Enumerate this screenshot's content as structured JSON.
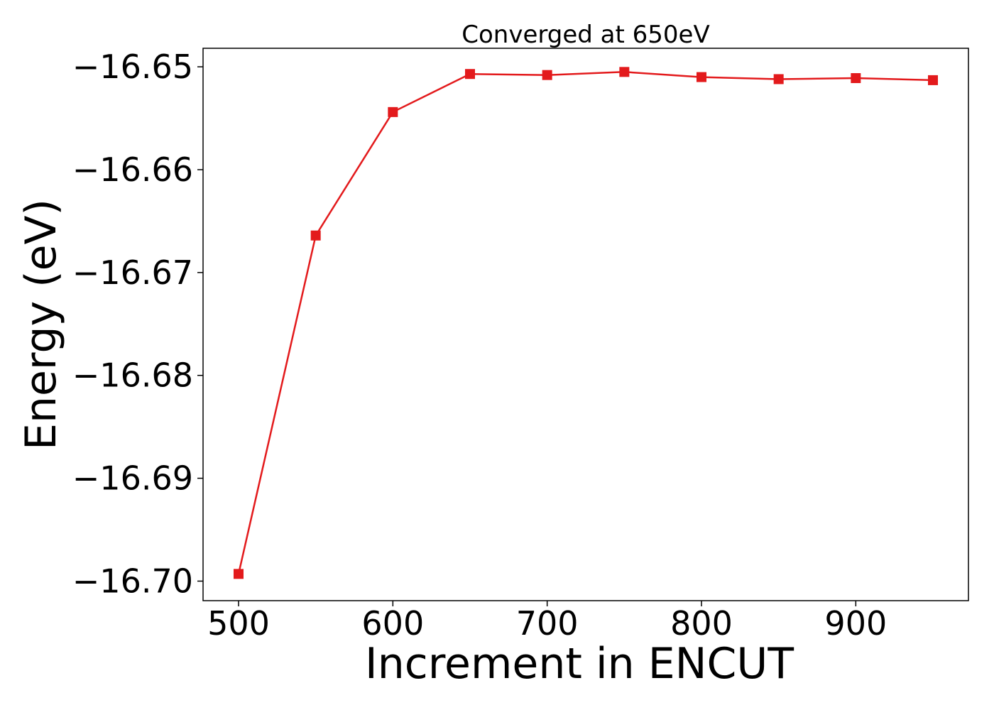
{
  "chart_data": {
    "type": "line",
    "title": "Converged at 650eV",
    "xlabel": "Increment in ENCUT",
    "ylabel": "Energy (eV)",
    "xlim": [
      477,
      973
    ],
    "ylim": [
      -16.7019,
      -16.6482
    ],
    "x_ticks": [
      500,
      600,
      700,
      800,
      900
    ],
    "x_tick_labels": [
      "500",
      "600",
      "700",
      "800",
      "900"
    ],
    "y_ticks": [
      -16.65,
      -16.66,
      -16.67,
      -16.68,
      -16.69,
      -16.7
    ],
    "y_tick_labels": [
      "−16.65",
      "−16.66",
      "−16.67",
      "−16.68",
      "−16.69",
      "−16.70"
    ],
    "grid": false,
    "legend": "none",
    "color": "#e31a1c",
    "marker": "square",
    "x": [
      500,
      550,
      600,
      650,
      700,
      750,
      800,
      850,
      900,
      950
    ],
    "y": [
      -16.6993,
      -16.6664,
      -16.6544,
      -16.6507,
      -16.6508,
      -16.6505,
      -16.651,
      -16.6512,
      -16.6511,
      -16.6513
    ]
  }
}
